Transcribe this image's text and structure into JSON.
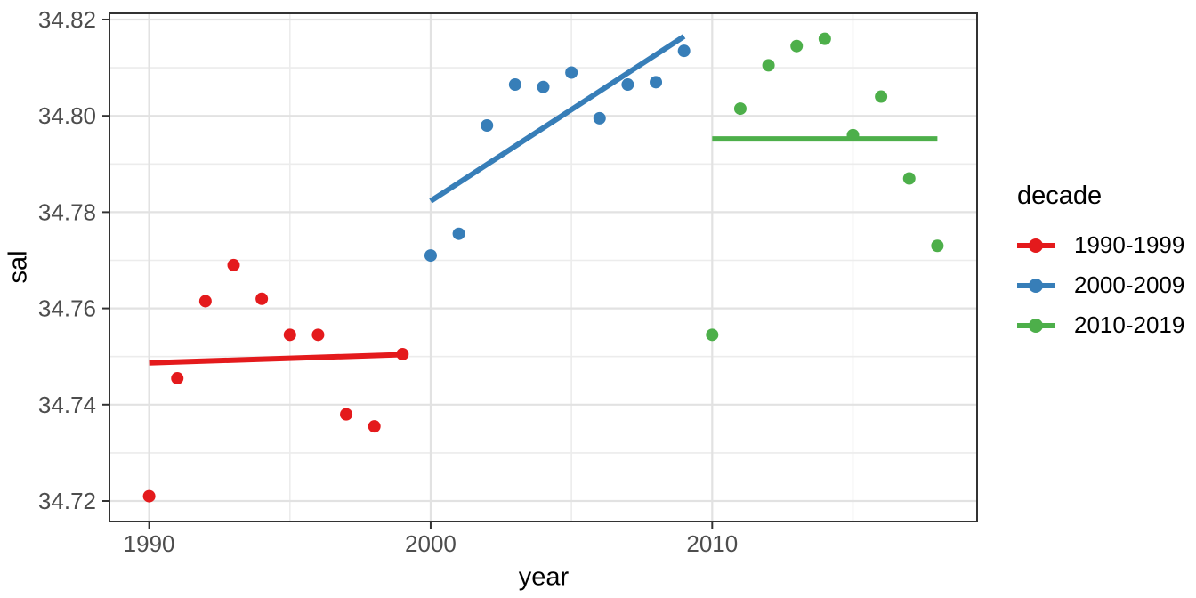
{
  "page": {
    "background": "#ffffff"
  },
  "chart_data": {
    "type": "scatter",
    "title": "",
    "xlabel": "year",
    "ylabel": "sal",
    "legend_title": "decade",
    "legend_position": "right",
    "grid": "on",
    "panel_border": true,
    "xlim": [
      1988.59,
      2019.41
    ],
    "ylim": [
      34.71575,
      34.82129
    ],
    "x_ticks": [
      {
        "value": 1990,
        "label": "1990"
      },
      {
        "value": 2000,
        "label": "2000"
      },
      {
        "value": 2010,
        "label": "2010"
      }
    ],
    "y_ticks": [
      {
        "value": 34.72,
        "label": "34.72"
      },
      {
        "value": 34.74,
        "label": "34.74"
      },
      {
        "value": 34.76,
        "label": "34.76"
      },
      {
        "value": 34.78,
        "label": "34.78"
      },
      {
        "value": 34.8,
        "label": "34.80"
      },
      {
        "value": 34.82,
        "label": "34.82"
      }
    ],
    "x_minor_gridlines": [
      1995,
      2005,
      2015
    ],
    "y_minor_gridlines": [
      34.73,
      34.75,
      34.77,
      34.79,
      34.81
    ],
    "colors": {
      "grid_major": "#e2e2e2",
      "grid_minor": "#ececec",
      "panel_border": "#333333",
      "tick_mark": "#333333",
      "tick_label": "#4d4d4d"
    },
    "series": [
      {
        "name": "1990-1999",
        "color": "#e41a1c",
        "points": [
          [
            1990,
            34.721
          ],
          [
            1991,
            34.7455
          ],
          [
            1992,
            34.7615
          ],
          [
            1993,
            34.769
          ],
          [
            1994,
            34.762
          ],
          [
            1995,
            34.7545
          ],
          [
            1996,
            34.7545
          ],
          [
            1997,
            34.738
          ],
          [
            1998,
            34.7355
          ],
          [
            1999,
            34.7505
          ]
        ],
        "trend_line": [
          [
            1990,
            34.7487
          ],
          [
            1999,
            34.7504
          ]
        ]
      },
      {
        "name": "2000-2009",
        "color": "#377eb8",
        "points": [
          [
            2000,
            34.771
          ],
          [
            2001,
            34.7755
          ],
          [
            2002,
            34.798
          ],
          [
            2003,
            34.8065
          ],
          [
            2004,
            34.806
          ],
          [
            2005,
            34.809
          ],
          [
            2006,
            34.7995
          ],
          [
            2007,
            34.8065
          ],
          [
            2008,
            34.807
          ],
          [
            2009,
            34.8135
          ]
        ],
        "trend_line": [
          [
            2000,
            34.7823
          ],
          [
            2009,
            34.8165
          ]
        ]
      },
      {
        "name": "2010-2019",
        "color": "#4daf4a",
        "points": [
          [
            2010,
            34.7545
          ],
          [
            2011,
            34.8015
          ],
          [
            2012,
            34.8105
          ],
          [
            2013,
            34.8145
          ],
          [
            2014,
            34.816
          ],
          [
            2015,
            34.796
          ],
          [
            2016,
            34.804
          ],
          [
            2017,
            34.787
          ],
          [
            2018,
            34.773
          ]
        ],
        "trend_line": [
          [
            2010,
            34.7952
          ],
          [
            2018,
            34.7952
          ]
        ]
      }
    ]
  }
}
